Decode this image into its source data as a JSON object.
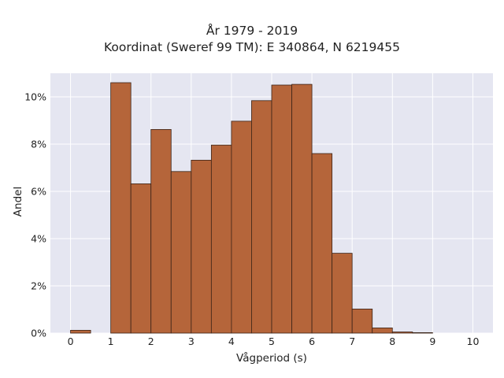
{
  "chart_data": {
    "type": "bar",
    "title": "År 1979 - 2019",
    "subtitle": "Koordinat (Sweref 99 TM): E 340864, N 6219455",
    "xlabel": "Vågperiod (s)",
    "ylabel": "Andel",
    "xlim": [
      -0.5,
      10.5
    ],
    "ylim": [
      0,
      11
    ],
    "x_ticks": [
      "0",
      "1",
      "2",
      "3",
      "4",
      "5",
      "6",
      "7",
      "8",
      "9",
      "10"
    ],
    "y_ticks": [
      "0%",
      "2%",
      "4%",
      "6%",
      "8%",
      "10%"
    ],
    "bin_width": 0.5,
    "bins": [
      {
        "x0": 0.0,
        "value": 0.12
      },
      {
        "x0": 1.0,
        "value": 10.6
      },
      {
        "x0": 1.5,
        "value": 6.32
      },
      {
        "x0": 2.0,
        "value": 8.62
      },
      {
        "x0": 2.5,
        "value": 6.84
      },
      {
        "x0": 3.0,
        "value": 7.32
      },
      {
        "x0": 3.5,
        "value": 7.96
      },
      {
        "x0": 4.0,
        "value": 8.97
      },
      {
        "x0": 4.5,
        "value": 9.84
      },
      {
        "x0": 5.0,
        "value": 10.5
      },
      {
        "x0": 5.5,
        "value": 10.53
      },
      {
        "x0": 6.0,
        "value": 7.6
      },
      {
        "x0": 6.5,
        "value": 3.38
      },
      {
        "x0": 7.0,
        "value": 1.02
      },
      {
        "x0": 7.5,
        "value": 0.22
      },
      {
        "x0": 8.0,
        "value": 0.05
      },
      {
        "x0": 8.5,
        "value": 0.02
      }
    ],
    "colors": {
      "bar_fill": "#b5653a",
      "bar_stroke": "#3b2418",
      "plot_bg": "#e5e6f1",
      "grid": "#ffffff"
    },
    "grid": true
  }
}
